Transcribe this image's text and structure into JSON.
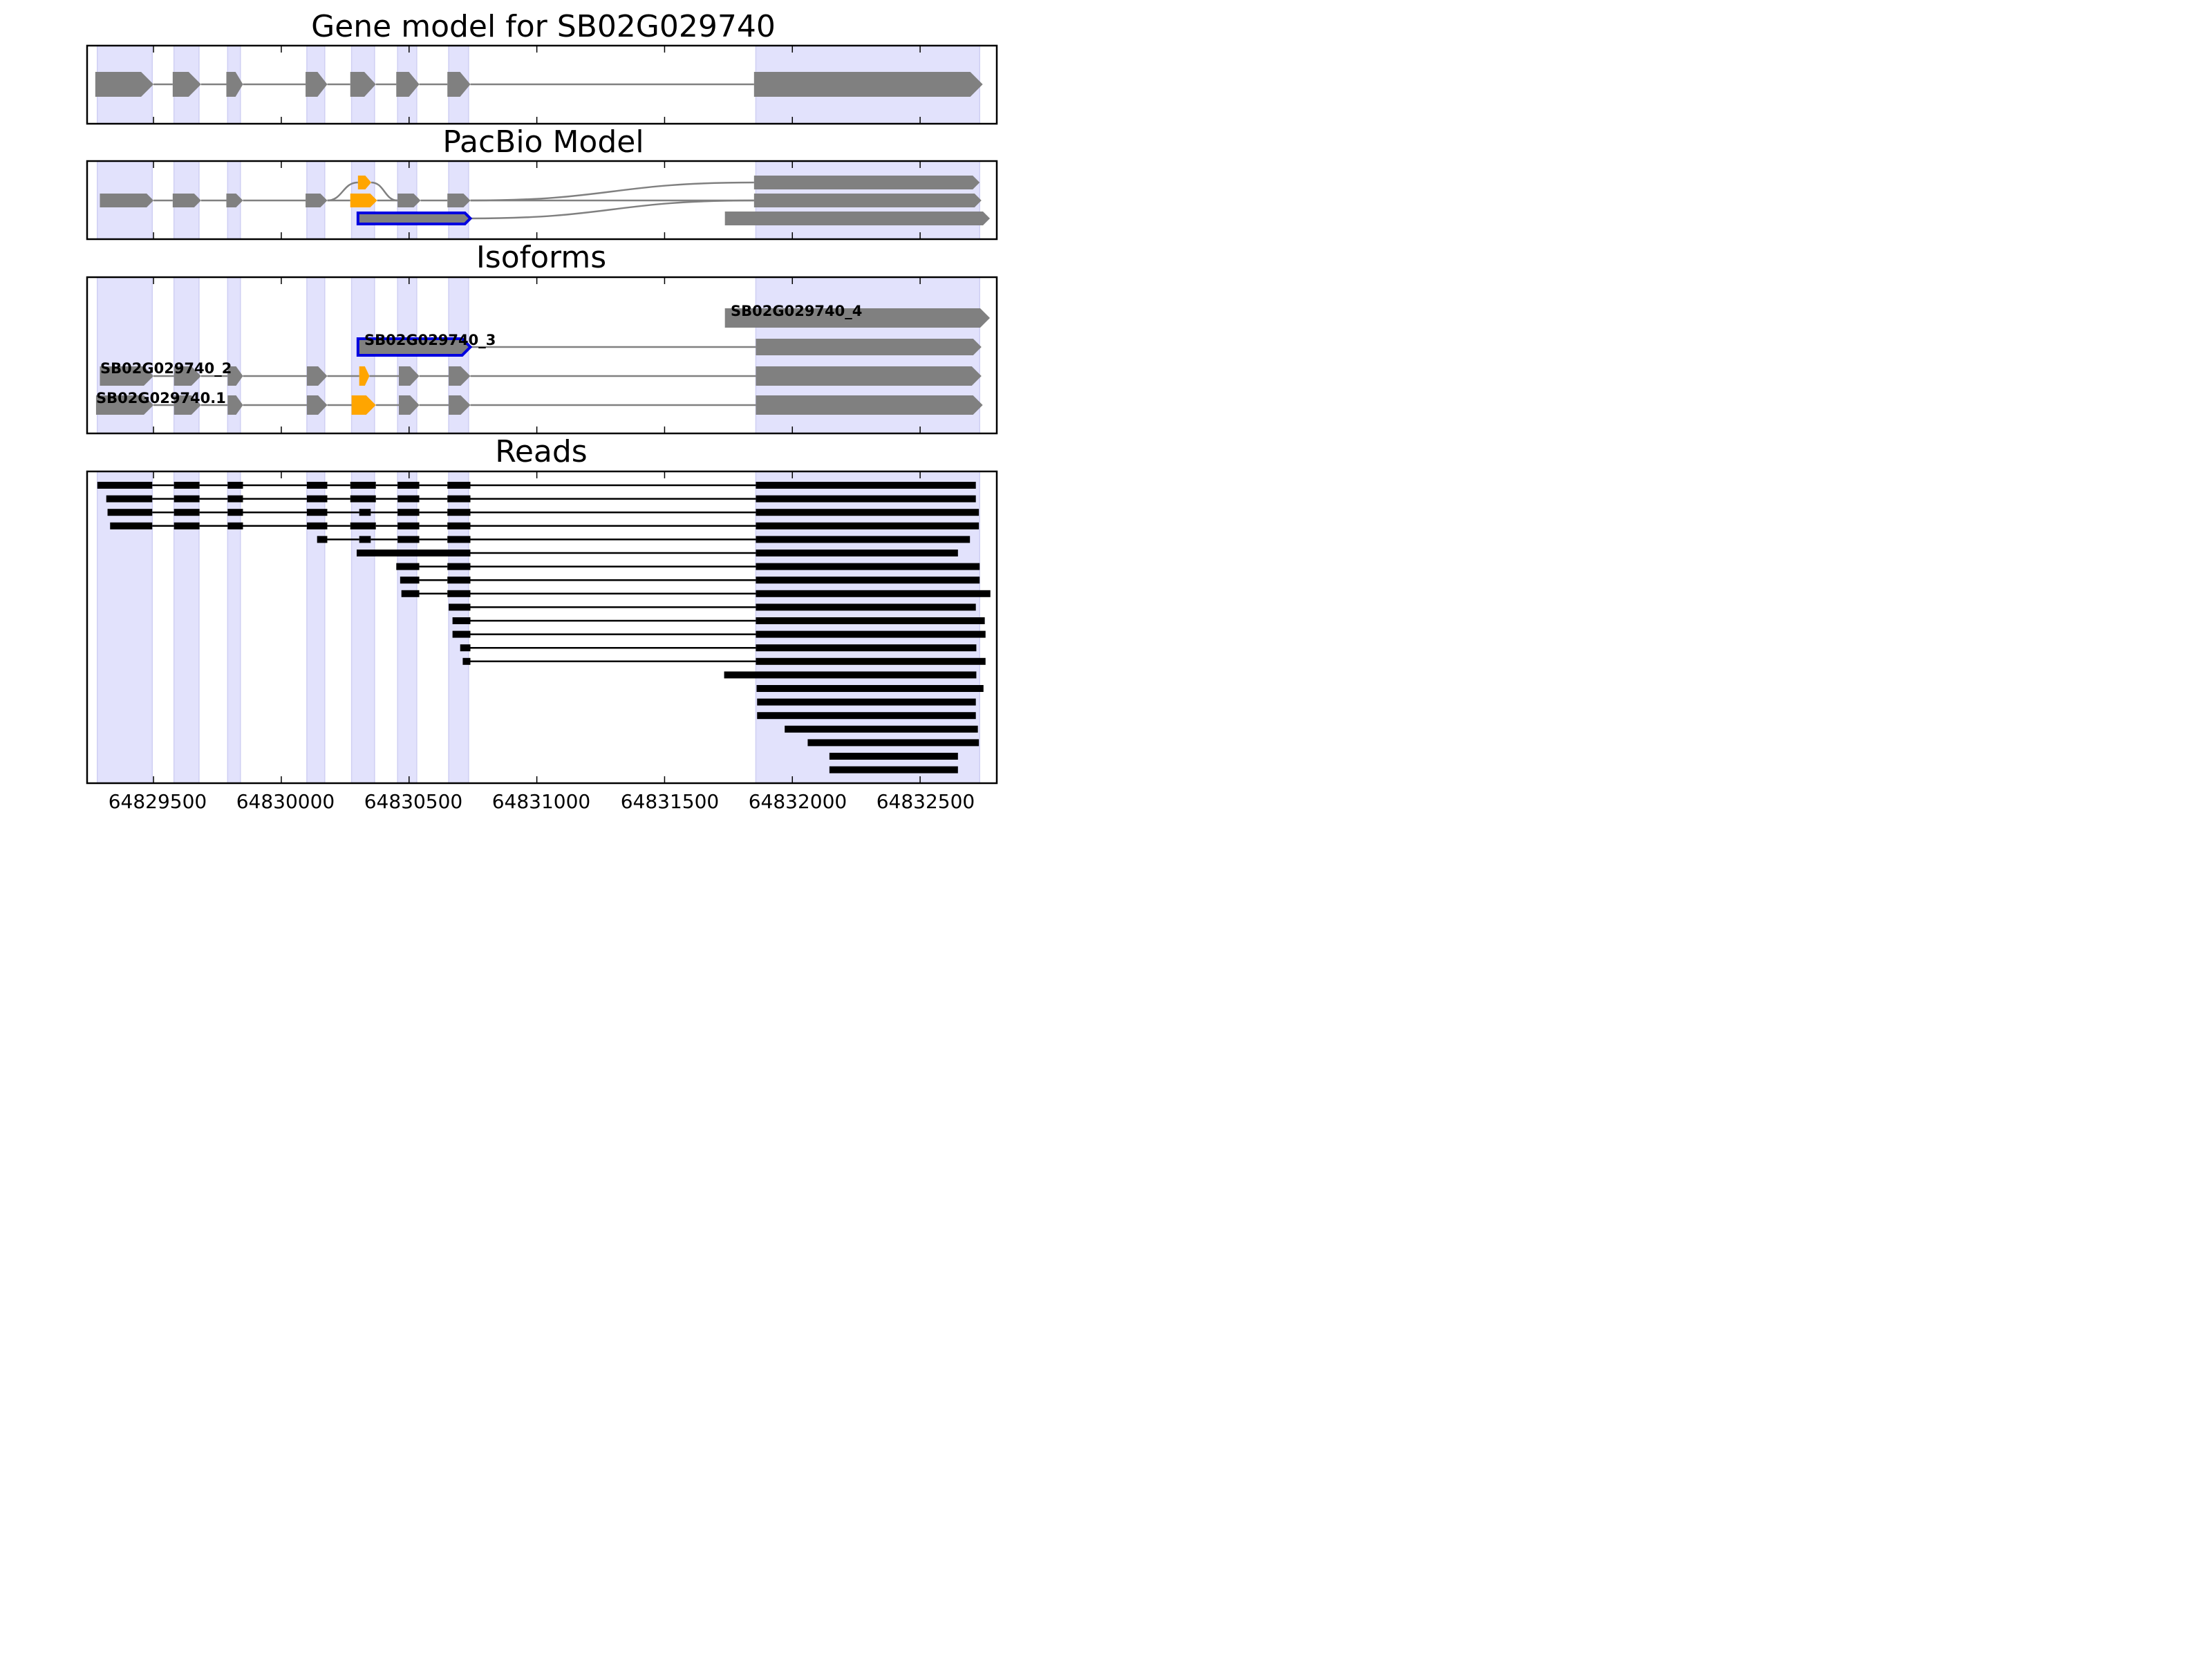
{
  "titles": {
    "gene_model": "Gene model for SB02G029740",
    "pacbio": "PacBio Model",
    "isoforms": "Isoforms",
    "reads": "Reads"
  },
  "x_ticks": [
    "64829500",
    "64830000",
    "64830500",
    "64831000",
    "64831500",
    "64832000",
    "64832500"
  ],
  "isoform_labels": [
    "SB02G029740_4",
    "SB02G029740_3",
    "SB02G029740_2",
    "SB02G029740.1"
  ],
  "colors": {
    "shade": "#e2e2fc",
    "shade_edge": "#cfcff3",
    "exon": "#808080",
    "highlight": "#ffa500",
    "selected": "#0000e0",
    "read": "#000000"
  },
  "chart_data": {
    "type": "gene-structure",
    "xlim": [
      64829240,
      64832800
    ],
    "xticks": [
      64829500,
      64830000,
      64830500,
      64831000,
      64831500,
      64832000,
      64832500
    ],
    "exon_regions": [
      [
        64829280,
        64829495
      ],
      [
        64829580,
        64829678
      ],
      [
        64829790,
        64829840
      ],
      [
        64830100,
        64830170
      ],
      [
        64830275,
        64830365
      ],
      [
        64830455,
        64830530
      ],
      [
        64830655,
        64830733
      ],
      [
        64831857,
        64832733
      ]
    ],
    "gene_model": {
      "strand": "+",
      "exons": [
        [
          64829272,
          64829500
        ],
        [
          64829575,
          64829686
        ],
        [
          64829785,
          64829850
        ],
        [
          64830095,
          64830180
        ],
        [
          64830270,
          64830370
        ],
        [
          64830450,
          64830540
        ],
        [
          64830650,
          64830740
        ],
        [
          64831850,
          64832745
        ]
      ]
    },
    "pacbio_model": [
      {
        "exons": [
          [
            64829290,
            64829500
          ],
          [
            64829575,
            64829686
          ],
          [
            64829785,
            64829850
          ],
          [
            64830095,
            64830180
          ],
          [
            64830270,
            64830375
          ],
          [
            64830455,
            64830545
          ],
          [
            64830650,
            64830740
          ],
          [
            64831850,
            64832740
          ]
        ],
        "highlight_exons": [
          4
        ]
      },
      {
        "exons": [
          [
            64830300,
            64830352
          ],
          [
            64831850,
            64832733
          ]
        ],
        "highlight_exons": [
          0
        ]
      },
      {
        "exons": [
          [
            64830300,
            64830740
          ],
          [
            64831736,
            64832773
          ]
        ],
        "selected_exons": [
          0
        ]
      }
    ],
    "isoforms": [
      {
        "name": "SB02G029740_4",
        "exons": [
          [
            64831736,
            64832773
          ]
        ]
      },
      {
        "name": "SB02G029740_3",
        "exons": [
          [
            64830300,
            64830740
          ],
          [
            64831857,
            64832740
          ]
        ],
        "selected_exons": [
          0
        ]
      },
      {
        "name": "SB02G029740_2",
        "exons": [
          [
            64829290,
            64829500
          ],
          [
            64829580,
            64829686
          ],
          [
            64829790,
            64829850
          ],
          [
            64830100,
            64830180
          ],
          [
            64830305,
            64830345
          ],
          [
            64830460,
            64830540
          ],
          [
            64830655,
            64830740
          ],
          [
            64831857,
            64832740
          ]
        ],
        "highlight_exons": [
          4
        ]
      },
      {
        "name": "SB02G029740.1",
        "exons": [
          [
            64829275,
            64829500
          ],
          [
            64829580,
            64829686
          ],
          [
            64829790,
            64829850
          ],
          [
            64830100,
            64830180
          ],
          [
            64830275,
            64830370
          ],
          [
            64830460,
            64830540
          ],
          [
            64830655,
            64830740
          ],
          [
            64831857,
            64832745
          ]
        ],
        "highlight_exons": [
          4
        ]
      }
    ],
    "reads": [
      [
        [
          64829280,
          64829495
        ],
        [
          64829580,
          64829680
        ],
        [
          64829790,
          64829850
        ],
        [
          64830100,
          64830180
        ],
        [
          64830270,
          64830370
        ],
        [
          64830455,
          64830540
        ],
        [
          64830650,
          64830740
        ],
        [
          64831857,
          64832718
        ]
      ],
      [
        [
          64829315,
          64829495
        ],
        [
          64829580,
          64829680
        ],
        [
          64829790,
          64829850
        ],
        [
          64830100,
          64830180
        ],
        [
          64830270,
          64830370
        ],
        [
          64830455,
          64830540
        ],
        [
          64830650,
          64830740
        ],
        [
          64831857,
          64832718
        ]
      ],
      [
        [
          64829320,
          64829495
        ],
        [
          64829580,
          64829680
        ],
        [
          64829790,
          64829850
        ],
        [
          64830100,
          64830180
        ],
        [
          64830305,
          64830350
        ],
        [
          64830455,
          64830540
        ],
        [
          64830650,
          64830740
        ],
        [
          64831857,
          64832730
        ]
      ],
      [
        [
          64829330,
          64829495
        ],
        [
          64829580,
          64829680
        ],
        [
          64829790,
          64829850
        ],
        [
          64830100,
          64830180
        ],
        [
          64830270,
          64830370
        ],
        [
          64830455,
          64830540
        ],
        [
          64830650,
          64830740
        ],
        [
          64831857,
          64832730
        ]
      ],
      [
        [
          64830140,
          64830180
        ],
        [
          64830305,
          64830350
        ],
        [
          64830455,
          64830540
        ],
        [
          64830650,
          64830740
        ],
        [
          64831857,
          64832695
        ]
      ],
      [
        [
          64830295,
          64830740
        ],
        [
          64831857,
          64832648
        ]
      ],
      [
        [
          64830450,
          64830540
        ],
        [
          64830650,
          64830740
        ],
        [
          64831857,
          64832733
        ]
      ],
      [
        [
          64830465,
          64830540
        ],
        [
          64830650,
          64830740
        ],
        [
          64831857,
          64832733
        ]
      ],
      [
        [
          64830470,
          64830540
        ],
        [
          64830650,
          64830740
        ],
        [
          64831857,
          64832775
        ]
      ],
      [
        [
          64830655,
          64830740
        ],
        [
          64831857,
          64832718
        ]
      ],
      [
        [
          64830670,
          64830740
        ],
        [
          64831857,
          64832753
        ]
      ],
      [
        [
          64830670,
          64830740
        ],
        [
          64831857,
          64832756
        ]
      ],
      [
        [
          64830700,
          64830740
        ],
        [
          64831857,
          64832720
        ]
      ],
      [
        [
          64830710,
          64830740
        ],
        [
          64831857,
          64832756
        ]
      ],
      [
        [
          64831733,
          64832720
        ]
      ],
      [
        [
          64831860,
          64832748
        ]
      ],
      [
        [
          64831862,
          64832718
        ]
      ],
      [
        [
          64831862,
          64832718
        ]
      ],
      [
        [
          64831970,
          64832726
        ]
      ],
      [
        [
          64832060,
          64832730
        ]
      ],
      [
        [
          64832145,
          64832648
        ]
      ],
      [
        [
          64832145,
          64832648
        ]
      ]
    ]
  }
}
